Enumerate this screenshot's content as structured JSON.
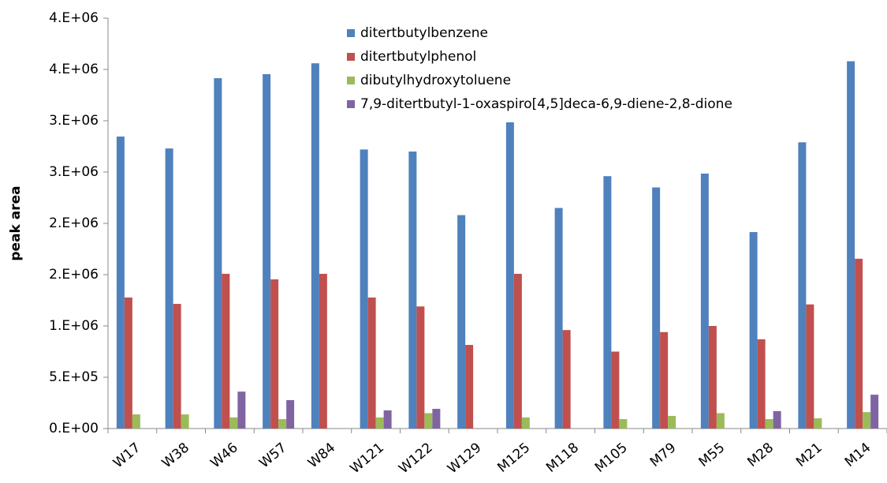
{
  "chart_data": {
    "type": "bar",
    "y_label": "peak area",
    "categories": [
      "W17",
      "W38",
      "W46",
      "W57",
      "W84",
      "W121",
      "W122",
      "W129",
      "M125",
      "M118",
      "M105",
      "M79",
      "M55",
      "M28",
      "M21",
      "M14"
    ],
    "series": [
      {
        "name": "ditertbutylbenzene",
        "color": "#4f81bd",
        "values": [
          2846000,
          2730000,
          3415000,
          3454000,
          3560000,
          2720000,
          2700000,
          2080000,
          2985000,
          2150000,
          2460000,
          2350000,
          2485000,
          1915000,
          2790000,
          3580000
        ]
      },
      {
        "name": "ditertbutylphenol",
        "color": "#c0504d",
        "values": [
          1277000,
          1215000,
          1508000,
          1454000,
          1508000,
          1277000,
          1190000,
          815000,
          1508000,
          960000,
          750000,
          940000,
          1000000,
          870000,
          1210000,
          1655000
        ]
      },
      {
        "name": "dibutylhydroxytoluene",
        "color": "#9bbb59",
        "values": [
          138000,
          138000,
          108000,
          92000,
          0,
          108000,
          150000,
          0,
          108000,
          0,
          92000,
          123000,
          150000,
          92000,
          100000,
          160000
        ]
      },
      {
        "name": "7,9-ditertbutyl-1-oxaspiro[4,5]deca-6,9-diene-2,8-dione",
        "color": "#8064a2",
        "values": [
          0,
          0,
          360000,
          277000,
          0,
          177000,
          192000,
          0,
          0,
          0,
          0,
          0,
          0,
          170000,
          0,
          330000
        ]
      }
    ],
    "ylim": [
      0,
      4000000
    ],
    "yticks": [
      {
        "value": 0,
        "label": "0.E+00"
      },
      {
        "value": 500000,
        "label": "5.E+05"
      },
      {
        "value": 1000000,
        "label": "1.E+06"
      },
      {
        "value": 1500000,
        "label": "2.E+06"
      },
      {
        "value": 2000000,
        "label": "2.E+06"
      },
      {
        "value": 2500000,
        "label": "3.E+06"
      },
      {
        "value": 3000000,
        "label": "3.E+06"
      },
      {
        "value": 3500000,
        "label": "4.E+06"
      },
      {
        "value": 4000000,
        "label": "4.E+06"
      }
    ],
    "grid": false,
    "legend": "top"
  }
}
